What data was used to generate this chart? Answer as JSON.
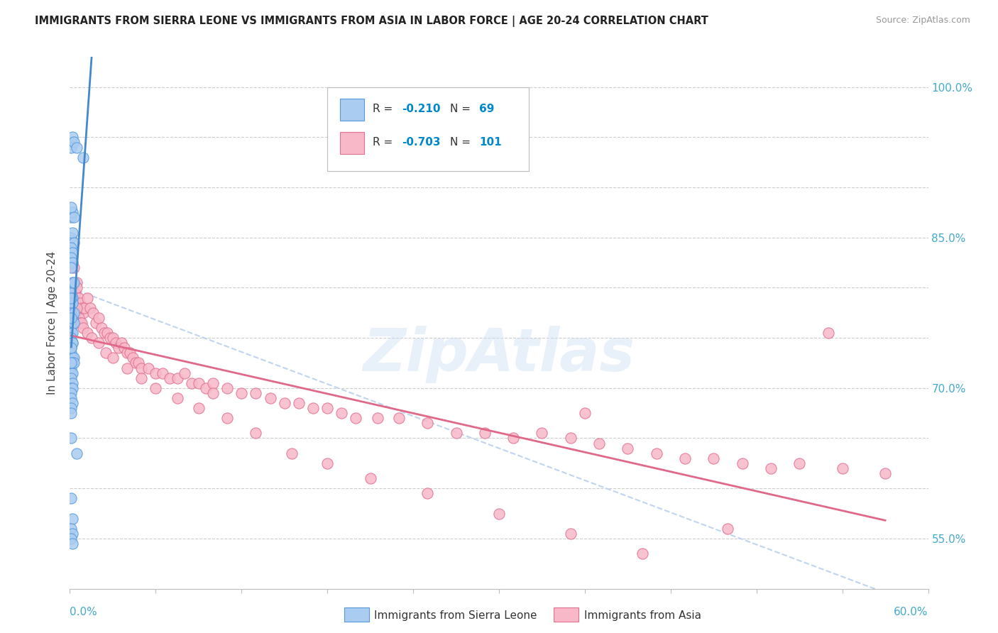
{
  "title": "IMMIGRANTS FROM SIERRA LEONE VS IMMIGRANTS FROM ASIA IN LABOR FORCE | AGE 20-24 CORRELATION CHART",
  "source": "Source: ZipAtlas.com",
  "ylabel": "In Labor Force | Age 20-24",
  "y_tick_positions": [
    55.0,
    60.0,
    65.0,
    70.0,
    75.0,
    80.0,
    85.0,
    90.0,
    95.0,
    100.0
  ],
  "y_tick_labels": [
    "55.0%",
    "",
    "",
    "70.0%",
    "",
    "",
    "85.0%",
    "",
    "",
    "100.0%"
  ],
  "color_sierra_fill": "#aaccf0",
  "color_sierra_edge": "#5599dd",
  "color_asia_fill": "#f8b8c8",
  "color_asia_edge": "#e07090",
  "color_line_sierra": "#4488cc",
  "color_line_asia": "#e06888",
  "color_dash": "#b8d0ee",
  "color_grid": "#cccccc",
  "color_right_tick": "#44aacc",
  "color_bottom_tick": "#44aacc",
  "watermark": "ZipAtlas",
  "background": "#ffffff",
  "x_min": 0.0,
  "x_max": 0.6,
  "y_min": 50.0,
  "y_max": 103.0,
  "sierra_x": [
    0.001,
    0.002,
    0.003,
    0.005,
    0.009,
    0.001,
    0.002,
    0.001,
    0.003,
    0.001,
    0.002,
    0.003,
    0.001,
    0.002,
    0.001,
    0.002,
    0.001,
    0.001,
    0.002,
    0.003,
    0.001,
    0.002,
    0.001,
    0.002,
    0.001,
    0.002,
    0.001,
    0.002,
    0.001,
    0.003,
    0.001,
    0.002,
    0.001,
    0.002,
    0.001,
    0.002,
    0.001,
    0.002,
    0.001,
    0.002,
    0.003,
    0.001,
    0.002,
    0.001,
    0.002,
    0.001,
    0.002,
    0.001,
    0.002,
    0.001,
    0.001,
    0.002,
    0.001,
    0.001,
    0.001,
    0.003,
    0.001,
    0.005,
    0.001,
    0.002,
    0.001,
    0.002,
    0.001,
    0.002,
    0.001,
    0.001,
    0.003,
    0.001
  ],
  "sierra_y": [
    94.0,
    95.0,
    94.5,
    94.0,
    93.0,
    87.0,
    87.5,
    88.0,
    87.0,
    85.0,
    85.5,
    84.5,
    84.0,
    83.5,
    83.0,
    82.5,
    82.0,
    80.0,
    80.5,
    80.5,
    79.5,
    79.0,
    78.5,
    78.5,
    77.5,
    77.0,
    76.5,
    77.0,
    76.0,
    76.5,
    75.5,
    75.5,
    75.0,
    74.5,
    74.0,
    74.5,
    73.5,
    73.0,
    72.5,
    73.0,
    73.0,
    72.0,
    72.5,
    71.5,
    71.5,
    71.0,
    70.5,
    70.0,
    70.0,
    69.5,
    69.0,
    68.5,
    68.0,
    67.5,
    79.0,
    77.5,
    65.0,
    63.5,
    59.0,
    57.0,
    56.0,
    55.5,
    55.0,
    54.5,
    77.0,
    74.0,
    72.5,
    72.5
  ],
  "asia_x": [
    0.001,
    0.002,
    0.003,
    0.004,
    0.005,
    0.006,
    0.007,
    0.008,
    0.009,
    0.01,
    0.012,
    0.014,
    0.016,
    0.018,
    0.02,
    0.022,
    0.024,
    0.026,
    0.028,
    0.03,
    0.032,
    0.034,
    0.036,
    0.038,
    0.04,
    0.042,
    0.044,
    0.046,
    0.048,
    0.05,
    0.055,
    0.06,
    0.065,
    0.07,
    0.075,
    0.08,
    0.085,
    0.09,
    0.095,
    0.1,
    0.11,
    0.12,
    0.13,
    0.14,
    0.15,
    0.16,
    0.17,
    0.18,
    0.19,
    0.2,
    0.215,
    0.23,
    0.25,
    0.27,
    0.29,
    0.31,
    0.33,
    0.35,
    0.37,
    0.39,
    0.41,
    0.43,
    0.45,
    0.47,
    0.49,
    0.51,
    0.54,
    0.57,
    0.003,
    0.004,
    0.005,
    0.006,
    0.007,
    0.008,
    0.009,
    0.012,
    0.015,
    0.02,
    0.025,
    0.03,
    0.04,
    0.05,
    0.06,
    0.075,
    0.09,
    0.11,
    0.13,
    0.155,
    0.18,
    0.21,
    0.25,
    0.3,
    0.35,
    0.4,
    0.46,
    0.53,
    0.003,
    0.005,
    0.1,
    0.36
  ],
  "asia_y": [
    79.5,
    80.0,
    79.0,
    79.5,
    80.5,
    79.0,
    78.5,
    78.0,
    77.5,
    78.0,
    79.0,
    78.0,
    77.5,
    76.5,
    77.0,
    76.0,
    75.5,
    75.5,
    75.0,
    75.0,
    74.5,
    74.0,
    74.5,
    74.0,
    73.5,
    73.5,
    73.0,
    72.5,
    72.5,
    72.0,
    72.0,
    71.5,
    71.5,
    71.0,
    71.0,
    71.5,
    70.5,
    70.5,
    70.0,
    70.5,
    70.0,
    69.5,
    69.5,
    69.0,
    68.5,
    68.5,
    68.0,
    68.0,
    67.5,
    67.0,
    67.0,
    67.0,
    66.5,
    65.5,
    65.5,
    65.0,
    65.5,
    65.0,
    64.5,
    64.0,
    63.5,
    63.0,
    63.0,
    62.5,
    62.0,
    62.5,
    62.0,
    61.5,
    78.0,
    77.5,
    78.0,
    77.0,
    76.5,
    76.5,
    76.0,
    75.5,
    75.0,
    74.5,
    73.5,
    73.0,
    72.0,
    71.0,
    70.0,
    69.0,
    68.0,
    67.0,
    65.5,
    63.5,
    62.5,
    61.0,
    59.5,
    57.5,
    55.5,
    53.5,
    56.0,
    75.5,
    82.0,
    80.0,
    69.5,
    67.5
  ]
}
